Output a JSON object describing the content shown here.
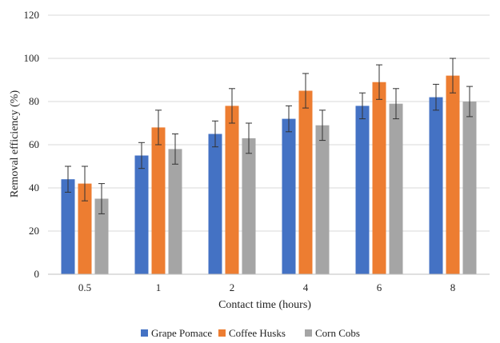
{
  "chart_data": {
    "type": "bar",
    "title": "",
    "xlabel": "Contact time (hours)",
    "ylabel": "Removal efficiency (%)",
    "categories": [
      "0.5",
      "1",
      "2",
      "4",
      "6",
      "8"
    ],
    "ylim": [
      0,
      120
    ],
    "yticks": [
      0,
      20,
      40,
      60,
      80,
      100,
      120
    ],
    "grid": "horizontal",
    "legend_position": "bottom",
    "series": [
      {
        "name": "Grape Pomace",
        "color": "#4472C4",
        "values": [
          44,
          55,
          65,
          72,
          78,
          82
        ],
        "errors": [
          6,
          6,
          6,
          6,
          6,
          6
        ]
      },
      {
        "name": "Coffee Husks",
        "color": "#ED7D31",
        "values": [
          42,
          68,
          78,
          85,
          89,
          92
        ],
        "errors": [
          8,
          8,
          8,
          8,
          8,
          8
        ]
      },
      {
        "name": "Corn Cobs",
        "color": "#A5A5A5",
        "values": [
          35,
          58,
          63,
          69,
          79,
          80
        ],
        "errors": [
          7,
          7,
          7,
          7,
          7,
          7
        ]
      }
    ]
  }
}
